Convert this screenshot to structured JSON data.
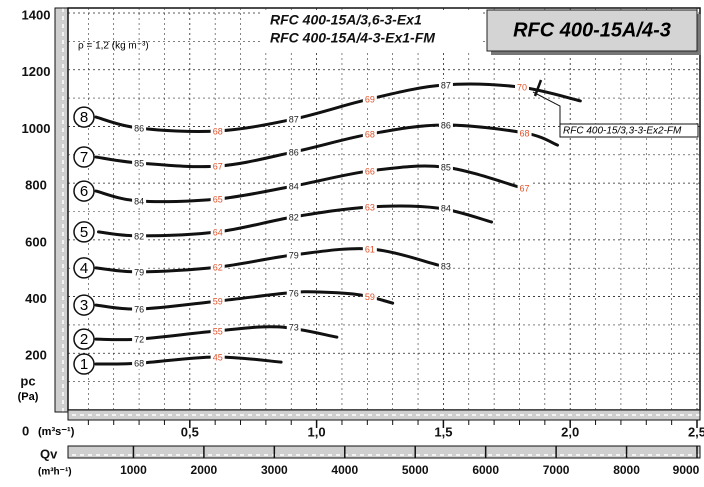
{
  "chart_data": {
    "type": "line",
    "title": "RFC 400-15A/4-3",
    "subtitles": [
      "RFC 400-15A/3,6-3-Ex1",
      "RFC 400-15A/4-3-Ex1-FM"
    ],
    "density_note": "ρ = 1,2 (kg m⁻³)",
    "annotation": "RFC 400-15/3,3-3-Ex2-FM",
    "y_label": "pc",
    "y_unit": "(Pa)",
    "x_origin_label": "0",
    "x_unit": "(m³s⁻¹)",
    "x2_label": "Qv",
    "x2_unit": "(m³h⁻¹)",
    "xlim": [
      0,
      2.5
    ],
    "xticks": [
      {
        "value": 0.5,
        "label": "0,5"
      },
      {
        "value": 1.0,
        "label": "1,0"
      },
      {
        "value": 1.5,
        "label": "1,5"
      },
      {
        "value": 2.0,
        "label": "2,0"
      },
      {
        "value": 2.5,
        "label": "2,5"
      }
    ],
    "minor_xticks": [
      0.1,
      0.2,
      0.3,
      0.4,
      0.6,
      0.7,
      0.8,
      0.9,
      1.1,
      1.2,
      1.3,
      1.4,
      1.6,
      1.7,
      1.8,
      1.9,
      2.1,
      2.2,
      2.3,
      2.4
    ],
    "x2lim": [
      0,
      9000
    ],
    "x2ticks": [
      1000,
      2000,
      3000,
      4000,
      5000,
      6000,
      7000,
      8000,
      9000
    ],
    "ylim": [
      0,
      1400
    ],
    "yticks": [
      200,
      400,
      600,
      800,
      1000,
      1200,
      1400
    ],
    "minor_yticks": [
      100,
      300,
      500,
      700,
      900,
      1100,
      1300
    ],
    "grid": true,
    "color": "#111111",
    "label_colors": {
      "black": "#222222",
      "orange": "#e0522a"
    },
    "series": [
      {
        "name": "1",
        "x": [
          0.13,
          0.3,
          0.6,
          0.86
        ],
        "values": [
          162,
          165,
          187,
          169
        ],
        "efficiency": [
          {
            "x": 0.3,
            "y": 165,
            "value": 68,
            "color": "black"
          },
          {
            "x": 0.61,
            "y": 187,
            "value": 45,
            "color": "orange"
          }
        ]
      },
      {
        "name": "2",
        "x": [
          0.13,
          0.3,
          0.61,
          0.85,
          1.08
        ],
        "values": [
          250,
          250,
          279,
          293,
          257
        ],
        "efficiency": [
          {
            "x": 0.3,
            "y": 250,
            "value": 72,
            "color": "black"
          },
          {
            "x": 0.61,
            "y": 279,
            "value": 55,
            "color": "orange"
          },
          {
            "x": 0.91,
            "y": 293,
            "value": 73,
            "color": "black"
          }
        ]
      },
      {
        "name": "3",
        "x": [
          0.13,
          0.3,
          0.61,
          0.89,
          1.01,
          1.17,
          1.3
        ],
        "values": [
          370,
          356,
          384,
          413,
          416,
          406,
          377
        ],
        "efficiency": [
          {
            "x": 0.3,
            "y": 356,
            "value": 76,
            "color": "black"
          },
          {
            "x": 0.61,
            "y": 384,
            "value": 59,
            "color": "orange"
          },
          {
            "x": 0.91,
            "y": 413,
            "value": 76,
            "color": "black"
          },
          {
            "x": 1.21,
            "y": 400,
            "value": 59,
            "color": "orange"
          }
        ]
      },
      {
        "name": "4",
        "x": [
          0.13,
          0.3,
          0.61,
          0.91,
          1.21,
          1.48
        ],
        "values": [
          501,
          487,
          504,
          547,
          568,
          511
        ],
        "efficiency": [
          {
            "x": 0.3,
            "y": 487,
            "value": 79,
            "color": "black"
          },
          {
            "x": 0.61,
            "y": 504,
            "value": 62,
            "color": "orange"
          },
          {
            "x": 0.91,
            "y": 547,
            "value": 79,
            "color": "black"
          },
          {
            "x": 1.21,
            "y": 568,
            "value": 61,
            "color": "orange"
          },
          {
            "x": 1.51,
            "y": 508,
            "value": 83,
            "color": "black"
          }
        ]
      },
      {
        "name": "5",
        "x": [
          0.14,
          0.3,
          0.61,
          0.91,
          1.21,
          1.48,
          1.69
        ],
        "values": [
          628,
          614,
          628,
          681,
          716,
          712,
          663
        ],
        "efficiency": [
          {
            "x": 0.3,
            "y": 614,
            "value": 82,
            "color": "black"
          },
          {
            "x": 0.61,
            "y": 628,
            "value": 64,
            "color": "orange"
          },
          {
            "x": 0.91,
            "y": 681,
            "value": 82,
            "color": "black"
          },
          {
            "x": 1.21,
            "y": 716,
            "value": 63,
            "color": "orange"
          },
          {
            "x": 1.51,
            "y": 712,
            "value": 84,
            "color": "black"
          }
        ]
      },
      {
        "name": "6",
        "x": [
          0.13,
          0.3,
          0.61,
          0.91,
          1.21,
          1.5,
          1.8
        ],
        "values": [
          772,
          737,
          744,
          790,
          843,
          857,
          786
        ],
        "efficiency": [
          {
            "x": 0.3,
            "y": 737,
            "value": 84,
            "color": "black"
          },
          {
            "x": 0.61,
            "y": 744,
            "value": 65,
            "color": "orange"
          },
          {
            "x": 0.91,
            "y": 790,
            "value": 84,
            "color": "black"
          },
          {
            "x": 1.21,
            "y": 843,
            "value": 66,
            "color": "orange"
          },
          {
            "x": 1.51,
            "y": 857,
            "value": 85,
            "color": "black"
          },
          {
            "x": 1.82,
            "y": 783,
            "value": 67,
            "color": "orange"
          }
        ]
      },
      {
        "name": "7",
        "x": [
          0.13,
          0.3,
          0.61,
          0.91,
          1.21,
          1.5,
          1.82,
          1.95
        ],
        "values": [
          892,
          871,
          860,
          910,
          973,
          1005,
          977,
          934
        ],
        "efficiency": [
          {
            "x": 0.3,
            "y": 871,
            "value": 85,
            "color": "black"
          },
          {
            "x": 0.61,
            "y": 860,
            "value": 67,
            "color": "orange"
          },
          {
            "x": 0.91,
            "y": 910,
            "value": 86,
            "color": "black"
          },
          {
            "x": 1.21,
            "y": 973,
            "value": 68,
            "color": "orange"
          },
          {
            "x": 1.51,
            "y": 1005,
            "value": 86,
            "color": "black"
          },
          {
            "x": 1.82,
            "y": 977,
            "value": 68,
            "color": "orange"
          }
        ]
      },
      {
        "name": "8",
        "x": [
          0.13,
          0.3,
          0.61,
          0.91,
          1.21,
          1.5,
          1.8,
          2.04
        ],
        "values": [
          1033,
          994,
          984,
          1026,
          1097,
          1146,
          1139,
          1090
        ],
        "efficiency": [
          {
            "x": 0.3,
            "y": 994,
            "value": 86,
            "color": "black"
          },
          {
            "x": 0.61,
            "y": 984,
            "value": 68,
            "color": "orange"
          },
          {
            "x": 0.91,
            "y": 1026,
            "value": 87,
            "color": "black"
          },
          {
            "x": 1.21,
            "y": 1097,
            "value": 69,
            "color": "orange"
          },
          {
            "x": 1.51,
            "y": 1146,
            "value": 87,
            "color": "black"
          },
          {
            "x": 1.81,
            "y": 1139,
            "value": 70,
            "color": "orange"
          }
        ]
      }
    ]
  }
}
